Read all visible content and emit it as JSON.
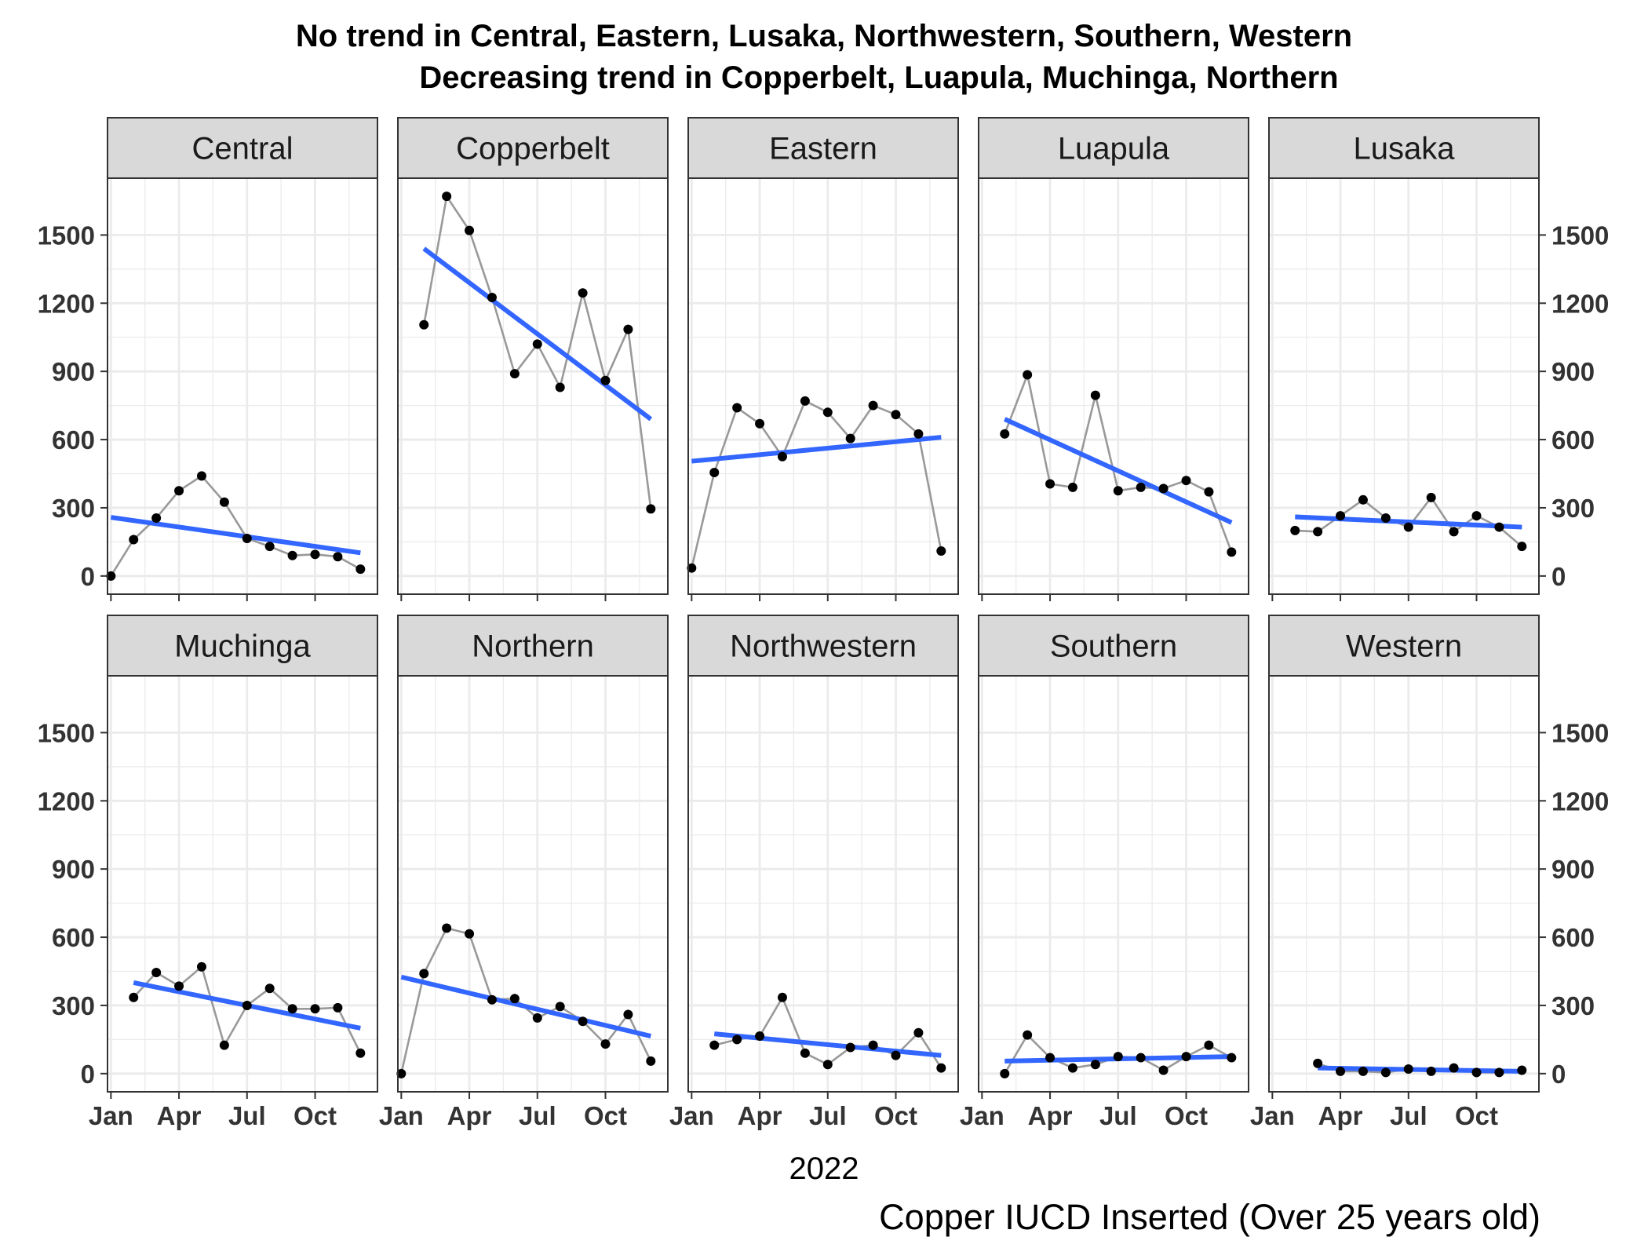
{
  "chart_data": {
    "type": "line",
    "title_lines": [
      "No trend in Central, Eastern, Lusaka, Northwestern, Southern, Western",
      "Decreasing trend in Copperbelt, Luapula, Muchinga, Northern"
    ],
    "xlabel": "2022",
    "caption": "Copper IUCD Inserted (Over 25 years old)",
    "x_ticks": [
      "Jan",
      "Apr",
      "Jul",
      "Oct"
    ],
    "x_tick_months": [
      1,
      4,
      7,
      10
    ],
    "y_ticks": [
      0,
      300,
      600,
      900,
      1200,
      1500
    ],
    "ylim": [
      -80,
      1750
    ],
    "xlim_months": [
      0.85,
      12.75
    ],
    "grid": true,
    "colors": {
      "series_line": "#999999",
      "point": "#000000",
      "trend": "#3366FF",
      "strip_bg": "#D9D9D9",
      "grid": "#EBEBEB"
    },
    "panels": [
      {
        "name": "Central",
        "x": [
          1,
          2,
          3,
          4,
          5,
          6,
          7,
          8,
          9,
          10,
          11,
          12
        ],
        "values": [
          0,
          160,
          255,
          375,
          440,
          325,
          165,
          130,
          90,
          95,
          85,
          30
        ],
        "trend": [
          [
            1,
            258
          ],
          [
            12,
            102
          ]
        ]
      },
      {
        "name": "Copperbelt",
        "x": [
          2,
          3,
          4,
          5,
          6,
          7,
          8,
          9,
          10,
          11,
          12
        ],
        "values": [
          1105,
          1670,
          1520,
          1225,
          890,
          1020,
          830,
          1245,
          860,
          1085,
          295
        ],
        "trend": [
          [
            2,
            1440
          ],
          [
            12,
            690
          ]
        ]
      },
      {
        "name": "Eastern",
        "x": [
          1,
          2,
          3,
          4,
          5,
          6,
          7,
          8,
          9,
          10,
          11,
          12
        ],
        "values": [
          35,
          455,
          740,
          670,
          525,
          770,
          720,
          605,
          750,
          710,
          625,
          110
        ],
        "trend": [
          [
            1,
            505
          ],
          [
            12,
            610
          ]
        ]
      },
      {
        "name": "Luapula",
        "x": [
          2,
          3,
          4,
          5,
          6,
          7,
          8,
          9,
          10,
          11,
          12
        ],
        "values": [
          625,
          885,
          405,
          390,
          795,
          375,
          390,
          385,
          420,
          370,
          105
        ],
        "trend": [
          [
            2,
            690
          ],
          [
            12,
            235
          ]
        ]
      },
      {
        "name": "Lusaka",
        "x": [
          2,
          3,
          4,
          5,
          6,
          7,
          8,
          9,
          10,
          11,
          12
        ],
        "values": [
          200,
          195,
          265,
          335,
          255,
          215,
          345,
          195,
          265,
          215,
          130
        ],
        "trend": [
          [
            2,
            260
          ],
          [
            12,
            215
          ]
        ]
      },
      {
        "name": "Muchinga",
        "x": [
          2,
          3,
          4,
          5,
          6,
          7,
          8,
          9,
          10,
          11,
          12
        ],
        "values": [
          335,
          445,
          385,
          470,
          125,
          300,
          375,
          285,
          285,
          290,
          90
        ],
        "trend": [
          [
            2,
            400
          ],
          [
            12,
            200
          ]
        ]
      },
      {
        "name": "Northern",
        "x": [
          1,
          2,
          3,
          4,
          5,
          6,
          7,
          8,
          9,
          10,
          11,
          12
        ],
        "values": [
          0,
          440,
          640,
          615,
          325,
          330,
          245,
          295,
          230,
          130,
          260,
          55
        ],
        "trend": [
          [
            1,
            425
          ],
          [
            12,
            165
          ]
        ]
      },
      {
        "name": "Northwestern",
        "x": [
          2,
          3,
          4,
          5,
          6,
          7,
          8,
          9,
          10,
          11,
          12
        ],
        "values": [
          125,
          150,
          165,
          335,
          90,
          40,
          115,
          125,
          80,
          180,
          25
        ],
        "trend": [
          [
            2,
            175
          ],
          [
            12,
            80
          ]
        ]
      },
      {
        "name": "Southern",
        "x": [
          2,
          3,
          4,
          5,
          6,
          7,
          8,
          9,
          10,
          11,
          12
        ],
        "values": [
          0,
          170,
          70,
          25,
          40,
          75,
          70,
          15,
          75,
          125,
          70
        ],
        "trend": [
          [
            2,
            55
          ],
          [
            12,
            75
          ]
        ]
      },
      {
        "name": "Western",
        "x": [
          3,
          4,
          5,
          6,
          7,
          8,
          9,
          10,
          11,
          12
        ],
        "values": [
          45,
          10,
          10,
          5,
          20,
          10,
          25,
          5,
          5,
          15
        ],
        "trend": [
          [
            3,
            25
          ],
          [
            12,
            10
          ]
        ]
      }
    ]
  }
}
